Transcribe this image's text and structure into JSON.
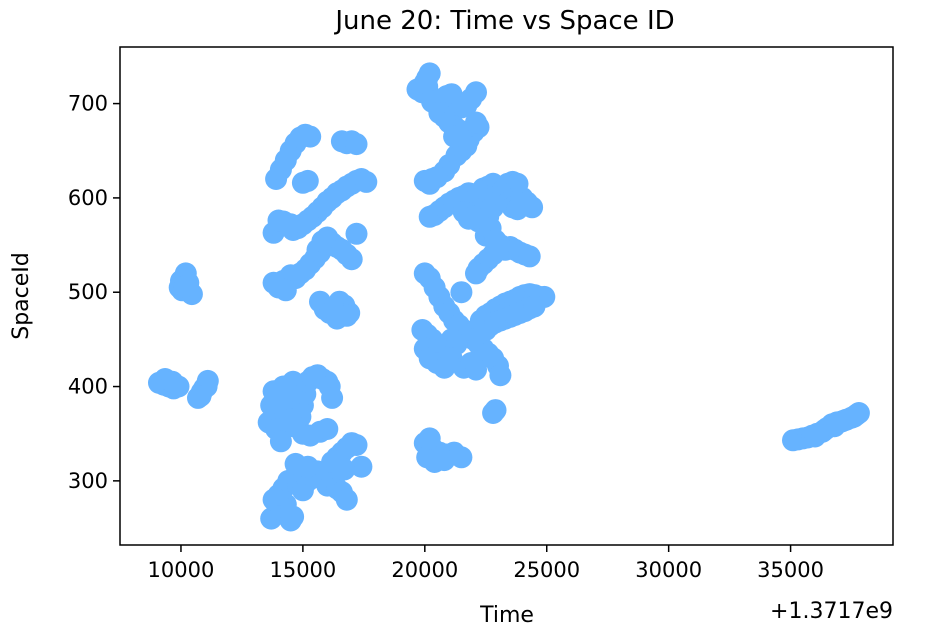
{
  "chart_data": {
    "type": "scatter",
    "title": "June 20: Time vs Space ID",
    "xlabel": "Time",
    "ylabel": "SpaceId",
    "x_offset_label": "+1.3717e9",
    "xlim": [
      7500,
      39200
    ],
    "ylim": [
      232,
      760
    ],
    "xticks": [
      10000,
      15000,
      20000,
      25000,
      30000,
      35000
    ],
    "yticks": [
      300,
      400,
      500,
      600,
      700
    ],
    "grid": false,
    "legend": "none",
    "marker_color": "#66b3ff",
    "points": [
      [
        9100,
        404
      ],
      [
        9300,
        402
      ],
      [
        9500,
        400
      ],
      [
        9700,
        398
      ],
      [
        9900,
        400
      ],
      [
        9350,
        408
      ],
      [
        9650,
        405
      ],
      [
        10200,
        520
      ],
      [
        10000,
        512
      ],
      [
        9950,
        505
      ],
      [
        10050,
        502
      ],
      [
        10300,
        510
      ],
      [
        10450,
        498
      ],
      [
        10150,
        506
      ],
      [
        10700,
        388
      ],
      [
        10850,
        394
      ],
      [
        10950,
        398
      ],
      [
        11050,
        400
      ],
      [
        11100,
        406
      ],
      [
        10800,
        390
      ],
      [
        13800,
        510
      ],
      [
        14000,
        505
      ],
      [
        14200,
        512
      ],
      [
        14500,
        518
      ],
      [
        14700,
        515
      ],
      [
        14300,
        502
      ],
      [
        14900,
        520
      ],
      [
        15100,
        524
      ],
      [
        15300,
        530
      ],
      [
        15500,
        536
      ],
      [
        15700,
        542
      ],
      [
        15600,
        545
      ],
      [
        13700,
        380
      ],
      [
        13800,
        395
      ],
      [
        13900,
        385
      ],
      [
        14000,
        370
      ],
      [
        14100,
        390
      ],
      [
        14200,
        400
      ],
      [
        14300,
        375
      ],
      [
        14400,
        385
      ],
      [
        14500,
        395
      ],
      [
        14600,
        405
      ],
      [
        14700,
        378
      ],
      [
        14800,
        390
      ],
      [
        14900,
        368
      ],
      [
        15000,
        380
      ],
      [
        15100,
        392
      ],
      [
        15200,
        405
      ],
      [
        15400,
        410
      ],
      [
        15600,
        412
      ],
      [
        15800,
        408
      ],
      [
        16000,
        405
      ],
      [
        16100,
        400
      ],
      [
        16200,
        388
      ],
      [
        13600,
        362
      ],
      [
        13900,
        355
      ],
      [
        14600,
        358
      ],
      [
        15000,
        350
      ],
      [
        15300,
        348
      ],
      [
        15700,
        352
      ],
      [
        16000,
        355
      ],
      [
        14100,
        342
      ],
      [
        14500,
        365
      ],
      [
        13700,
        260
      ],
      [
        13900,
        265
      ],
      [
        14100,
        270
      ],
      [
        14300,
        275
      ],
      [
        14500,
        258
      ],
      [
        14600,
        262
      ],
      [
        13800,
        280
      ],
      [
        14000,
        285
      ],
      [
        14200,
        292
      ],
      [
        14400,
        300
      ],
      [
        14600,
        302
      ],
      [
        14800,
        296
      ],
      [
        15000,
        290
      ],
      [
        15200,
        300
      ],
      [
        15400,
        305
      ],
      [
        15600,
        310
      ],
      [
        15800,
        302
      ],
      [
        16000,
        295
      ],
      [
        16200,
        298
      ],
      [
        16400,
        292
      ],
      [
        16600,
        288
      ],
      [
        16800,
        280
      ],
      [
        14700,
        318
      ],
      [
        15200,
        315
      ],
      [
        16200,
        320
      ],
      [
        16400,
        325
      ],
      [
        16600,
        330
      ],
      [
        16800,
        335
      ],
      [
        17000,
        340
      ],
      [
        17200,
        338
      ],
      [
        17400,
        315
      ],
      [
        16700,
        312
      ],
      [
        13900,
        620
      ],
      [
        14100,
        630
      ],
      [
        14300,
        640
      ],
      [
        14500,
        650
      ],
      [
        14700,
        658
      ],
      [
        14900,
        664
      ],
      [
        15100,
        667
      ],
      [
        15300,
        665
      ],
      [
        15200,
        618
      ],
      [
        15000,
        616
      ],
      [
        13800,
        563
      ],
      [
        14000,
        570
      ],
      [
        14200,
        575
      ],
      [
        14400,
        570
      ],
      [
        14600,
        566
      ],
      [
        14800,
        568
      ],
      [
        15000,
        572
      ],
      [
        15200,
        576
      ],
      [
        15400,
        580
      ],
      [
        15600,
        585
      ],
      [
        15800,
        590
      ],
      [
        16000,
        596
      ],
      [
        16200,
        600
      ],
      [
        16400,
        605
      ],
      [
        16600,
        608
      ],
      [
        16800,
        612
      ],
      [
        17000,
        615
      ],
      [
        17200,
        618
      ],
      [
        17400,
        620
      ],
      [
        17600,
        617
      ],
      [
        14000,
        576
      ],
      [
        14500,
        572
      ],
      [
        15800,
        554
      ],
      [
        16000,
        558
      ],
      [
        16200,
        552
      ],
      [
        16400,
        548
      ],
      [
        16600,
        545
      ],
      [
        16800,
        540
      ],
      [
        17000,
        535
      ],
      [
        17200,
        562
      ],
      [
        15700,
        490
      ],
      [
        15900,
        482
      ],
      [
        16100,
        478
      ],
      [
        16300,
        484
      ],
      [
        16500,
        490
      ],
      [
        16700,
        486
      ],
      [
        16900,
        478
      ],
      [
        16800,
        475
      ],
      [
        16400,
        472
      ],
      [
        16500,
        475
      ],
      [
        16600,
        660
      ],
      [
        16800,
        658
      ],
      [
        17000,
        660
      ],
      [
        17200,
        657
      ],
      [
        19700,
        715
      ],
      [
        19900,
        712
      ],
      [
        20100,
        718
      ],
      [
        20000,
        722
      ],
      [
        20200,
        732
      ],
      [
        20100,
        727
      ],
      [
        20300,
        702
      ],
      [
        20500,
        698
      ],
      [
        20700,
        705
      ],
      [
        20900,
        708
      ],
      [
        21100,
        710
      ],
      [
        21300,
        700
      ],
      [
        21500,
        696
      ],
      [
        21700,
        698
      ],
      [
        21900,
        705
      ],
      [
        22100,
        712
      ],
      [
        20600,
        690
      ],
      [
        20800,
        686
      ],
      [
        21000,
        680
      ],
      [
        21200,
        676
      ],
      [
        21400,
        672
      ],
      [
        21600,
        668
      ],
      [
        21800,
        662
      ],
      [
        22000,
        670
      ],
      [
        22200,
        675
      ],
      [
        22100,
        680
      ],
      [
        21500,
        650
      ],
      [
        21300,
        645
      ],
      [
        21000,
        635
      ],
      [
        20800,
        628
      ],
      [
        20500,
        622
      ],
      [
        20200,
        615
      ],
      [
        20000,
        618
      ],
      [
        20300,
        620
      ],
      [
        21700,
        655
      ],
      [
        21200,
        665
      ],
      [
        20200,
        580
      ],
      [
        20400,
        582
      ],
      [
        20600,
        586
      ],
      [
        20800,
        590
      ],
      [
        21000,
        594
      ],
      [
        21200,
        597
      ],
      [
        21400,
        600
      ],
      [
        21600,
        602
      ],
      [
        21800,
        605
      ],
      [
        22000,
        600
      ],
      [
        22200,
        605
      ],
      [
        22400,
        610
      ],
      [
        22600,
        612
      ],
      [
        22800,
        615
      ],
      [
        23000,
        612
      ],
      [
        23200,
        608
      ],
      [
        23400,
        615
      ],
      [
        23600,
        617
      ],
      [
        23800,
        615
      ],
      [
        22000,
        580
      ],
      [
        22200,
        575
      ],
      [
        22400,
        585
      ],
      [
        22600,
        580
      ],
      [
        22800,
        590
      ],
      [
        23000,
        598
      ],
      [
        23200,
        602
      ],
      [
        23400,
        595
      ],
      [
        23600,
        590
      ],
      [
        23800,
        588
      ],
      [
        24000,
        600
      ],
      [
        24200,
        595
      ],
      [
        24400,
        590
      ],
      [
        21600,
        585
      ],
      [
        21800,
        578
      ],
      [
        22500,
        560
      ],
      [
        22700,
        568
      ],
      [
        22900,
        555
      ],
      [
        23100,
        550
      ],
      [
        23300,
        545
      ],
      [
        23500,
        548
      ],
      [
        23700,
        545
      ],
      [
        23900,
        542
      ],
      [
        24100,
        540
      ],
      [
        24300,
        538
      ],
      [
        22600,
        535
      ],
      [
        22800,
        540
      ],
      [
        23000,
        545
      ],
      [
        22400,
        530
      ],
      [
        22200,
        525
      ],
      [
        22100,
        520
      ],
      [
        20000,
        520
      ],
      [
        20200,
        515
      ],
      [
        20400,
        505
      ],
      [
        20600,
        495
      ],
      [
        20800,
        485
      ],
      [
        21000,
        478
      ],
      [
        21200,
        470
      ],
      [
        21400,
        465
      ],
      [
        21600,
        460
      ],
      [
        21800,
        455
      ],
      [
        22000,
        450
      ],
      [
        22200,
        445
      ],
      [
        22400,
        440
      ],
      [
        22600,
        435
      ],
      [
        22800,
        430
      ],
      [
        23000,
        422
      ],
      [
        23100,
        412
      ],
      [
        19900,
        460
      ],
      [
        20100,
        455
      ],
      [
        20300,
        450
      ],
      [
        20500,
        445
      ],
      [
        20700,
        440
      ],
      [
        20900,
        438
      ],
      [
        21100,
        450
      ],
      [
        21300,
        445
      ],
      [
        20000,
        440
      ],
      [
        20200,
        430
      ],
      [
        20500,
        425
      ],
      [
        20800,
        420
      ],
      [
        21100,
        430
      ],
      [
        21600,
        420
      ],
      [
        21900,
        425
      ],
      [
        22100,
        418
      ],
      [
        21500,
        500
      ],
      [
        22300,
        470
      ],
      [
        22500,
        475
      ],
      [
        22700,
        478
      ],
      [
        22900,
        482
      ],
      [
        23100,
        485
      ],
      [
        23300,
        488
      ],
      [
        23500,
        490
      ],
      [
        23700,
        492
      ],
      [
        23900,
        495
      ],
      [
        24100,
        497
      ],
      [
        24300,
        498
      ],
      [
        24500,
        497
      ],
      [
        24700,
        495
      ],
      [
        24900,
        495
      ],
      [
        22500,
        460
      ],
      [
        22700,
        465
      ],
      [
        22900,
        468
      ],
      [
        23100,
        470
      ],
      [
        23300,
        472
      ],
      [
        23500,
        474
      ],
      [
        23700,
        476
      ],
      [
        23900,
        478
      ],
      [
        24100,
        480
      ],
      [
        24300,
        483
      ],
      [
        24500,
        485
      ],
      [
        20000,
        340
      ],
      [
        20300,
        335
      ],
      [
        20600,
        330
      ],
      [
        20900,
        328
      ],
      [
        21200,
        330
      ],
      [
        21500,
        325
      ],
      [
        20100,
        325
      ],
      [
        20400,
        320
      ],
      [
        20800,
        322
      ],
      [
        20200,
        345
      ],
      [
        22900,
        375
      ],
      [
        22800,
        372
      ],
      [
        35100,
        343
      ],
      [
        35300,
        344
      ],
      [
        35500,
        345
      ],
      [
        35700,
        346
      ],
      [
        35900,
        348
      ],
      [
        36100,
        350
      ],
      [
        36300,
        352
      ],
      [
        36500,
        356
      ],
      [
        36700,
        360
      ],
      [
        36900,
        362
      ],
      [
        37100,
        363
      ],
      [
        37300,
        365
      ],
      [
        37500,
        367
      ],
      [
        37700,
        370
      ],
      [
        37800,
        372
      ],
      [
        36000,
        347
      ],
      [
        36400,
        354
      ],
      [
        36800,
        358
      ],
      [
        37200,
        364
      ],
      [
        37600,
        368
      ]
    ]
  }
}
